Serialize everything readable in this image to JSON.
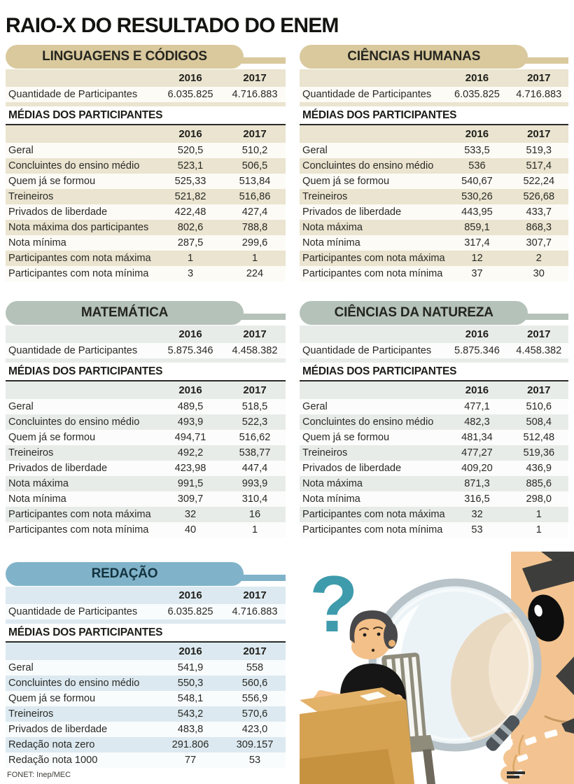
{
  "page": {
    "title": "RAIO-X DO RESULTADO DO ENEM",
    "source": "FONET: Inep/MEC"
  },
  "colors": {
    "tan_accent": "#d9c99d",
    "tan_tint": "#eae4d0",
    "sage_accent": "#b5c2b9",
    "sage_tint": "#e8ece8",
    "blue_accent": "#80b3c9",
    "blue_tint": "#dce9f0",
    "question_mark_teal": "#3e9bac",
    "title_text": "#131310"
  },
  "illustration": {
    "description": "student writing at a desk while a giant face inspects him through a magnifying glass",
    "icons": [
      "question-mark",
      "student-at-desk",
      "magnifying-glass",
      "giant-face",
      "giant-hand"
    ]
  },
  "chart_data": [
    {
      "type": "table",
      "title": "LINGUAGENS E CÓDIGOS",
      "theme": "tan",
      "columns": [
        "",
        "2016",
        "2017"
      ],
      "participants_row": [
        "Quantidade de Participantes",
        "6.035.825",
        "4.716.883"
      ],
      "section_header": "MÉDIAS DOS PARTICIPANTES",
      "rows": [
        [
          "Geral",
          "520,5",
          "510,2"
        ],
        [
          "Concluintes do ensino médio",
          "523,1",
          "506,5"
        ],
        [
          "Quem já se formou",
          "525,33",
          "513,84"
        ],
        [
          "Treineiros",
          "521,82",
          "516,86"
        ],
        [
          "Privados de liberdade",
          "422,48",
          "427,4"
        ],
        [
          "Nota máxima dos participantes",
          "802,6",
          "788,8"
        ],
        [
          "Nota mínima",
          "287,5",
          "299,6"
        ],
        [
          "Participantes com nota máxima",
          "1",
          "1"
        ],
        [
          "Participantes com nota mínima",
          "3",
          "224"
        ]
      ]
    },
    {
      "type": "table",
      "title": "CIÊNCIAS HUMANAS",
      "theme": "tan",
      "columns": [
        "",
        "2016",
        "2017"
      ],
      "participants_row": [
        "Quantidade de Participantes",
        "6.035.825",
        "4.716.883"
      ],
      "section_header": "MÉDIAS DOS PARTICIPANTES",
      "rows": [
        [
          "Geral",
          "533,5",
          "519,3"
        ],
        [
          "Concluintes do ensino médio",
          "536",
          "517,4"
        ],
        [
          "Quem já se formou",
          "540,67",
          "522,24"
        ],
        [
          "Treineiros",
          "530,26",
          "526,68"
        ],
        [
          "Privados de liberdade",
          "443,95",
          "433,7"
        ],
        [
          "Nota máxima",
          "859,1",
          "868,3"
        ],
        [
          "Nota mínima",
          "317,4",
          "307,7"
        ],
        [
          "Participantes com nota máxima",
          "12",
          "2"
        ],
        [
          "Participantes com nota mínima",
          "37",
          "30"
        ]
      ]
    },
    {
      "type": "table",
      "title": "MATEMÁTICA",
      "theme": "sage",
      "columns": [
        "",
        "2016",
        "2017"
      ],
      "participants_row": [
        "Quantidade de Participantes",
        "5.875.346",
        "4.458.382"
      ],
      "section_header": "MÉDIAS DOS PARTICIPANTES",
      "rows": [
        [
          "Geral",
          "489,5",
          "518,5"
        ],
        [
          "Concluintes do ensino médio",
          "493,9",
          "522,3"
        ],
        [
          "Quem já se formou",
          "494,71",
          "516,62"
        ],
        [
          "Treineiros",
          "492,2",
          "538,77"
        ],
        [
          "Privados de liberdade",
          "423,98",
          "447,4"
        ],
        [
          "Nota máxima",
          "991,5",
          "993,9"
        ],
        [
          "Nota mínima",
          "309,7",
          "310,4"
        ],
        [
          "Participantes com nota máxima",
          "32",
          "16"
        ],
        [
          "Participantes com nota mínima",
          "40",
          "1"
        ]
      ]
    },
    {
      "type": "table",
      "title": "CIÊNCIAS DA NATUREZA",
      "theme": "sage",
      "columns": [
        "",
        "2016",
        "2017"
      ],
      "participants_row": [
        "Quantidade de Participantes",
        "5.875.346",
        "4.458.382"
      ],
      "section_header": "MÉDIAS DOS PARTICIPANTES",
      "rows": [
        [
          "Geral",
          "477,1",
          "510,6"
        ],
        [
          "Concluintes do ensino médio",
          "482,3",
          "508,4"
        ],
        [
          "Quem já se formou",
          "481,34",
          "512,48"
        ],
        [
          "Treineiros",
          "477,27",
          "519,36"
        ],
        [
          "Privados de liberdade",
          "409,20",
          "436,9"
        ],
        [
          "Nota máxima",
          "871,3",
          "885,6"
        ],
        [
          "Nota mínima",
          "316,5",
          "298,0"
        ],
        [
          "Participantes com nota máxima",
          "32",
          "1"
        ],
        [
          "Participantes com nota mínima",
          "53",
          "1"
        ]
      ]
    },
    {
      "type": "table",
      "title": "REDAÇÃO",
      "theme": "blue",
      "columns": [
        "",
        "2016",
        "2017"
      ],
      "participants_row": [
        "Quantidade de Participantes",
        "6.035.825",
        "4.716.883"
      ],
      "section_header": "MÉDIAS DOS PARTICIPANTES",
      "rows": [
        [
          "Geral",
          "541,9",
          "558"
        ],
        [
          "Concluintes do ensino médio",
          "550,3",
          "560,6"
        ],
        [
          "Quem já se formou",
          "548,1",
          "556,9"
        ],
        [
          "Treineiros",
          "543,2",
          "570,6"
        ],
        [
          "Privados de liberdade",
          "483,8",
          "423,0"
        ],
        [
          "Redação nota zero",
          "291.806",
          "309.157"
        ],
        [
          "Redação nota 1000",
          "77",
          "53"
        ]
      ]
    }
  ]
}
